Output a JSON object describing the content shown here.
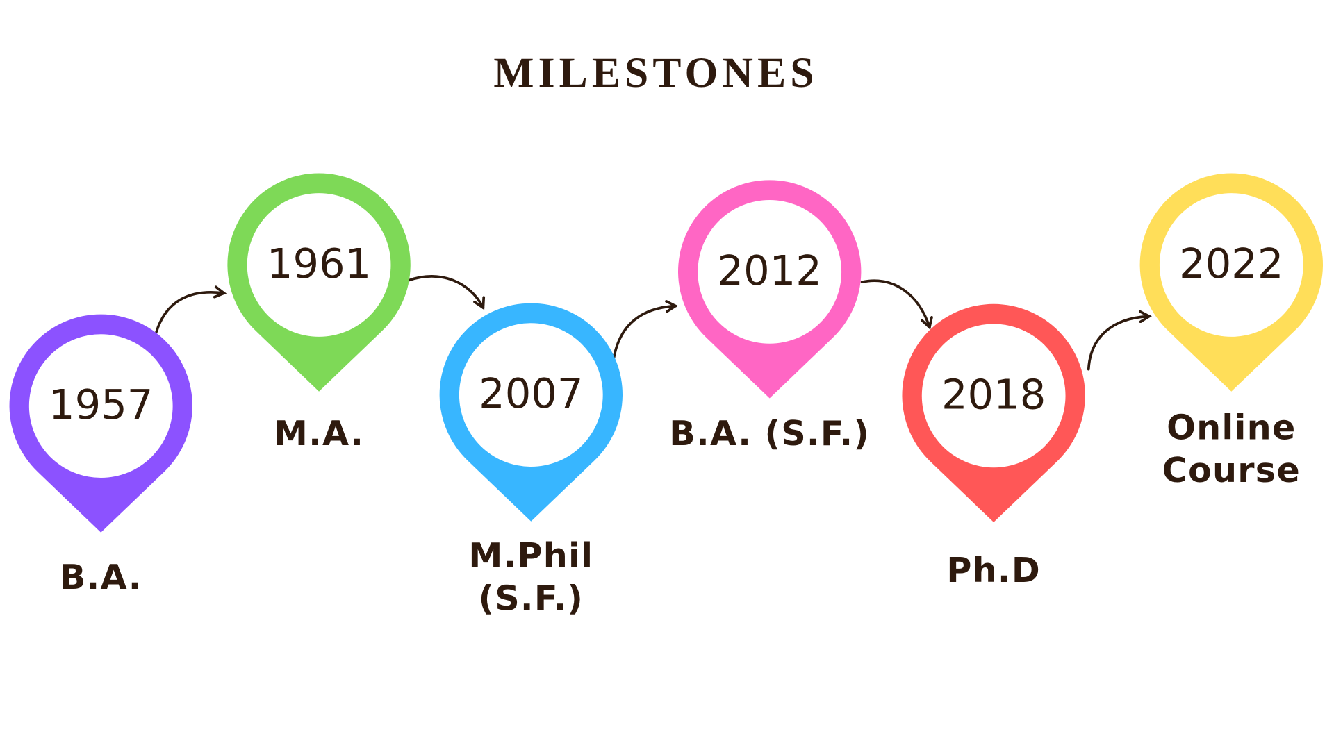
{
  "title": "MILESTONES",
  "milestones": [
    {
      "year": "1957",
      "label_lines": [
        "B.A."
      ]
    },
    {
      "year": "1961",
      "label_lines": [
        "M.A."
      ]
    },
    {
      "year": "2007",
      "label_lines": [
        "M.Phil",
        "(S.F.)"
      ]
    },
    {
      "year": "2012",
      "label_lines": [
        "B.A. (S.F.)"
      ]
    },
    {
      "year": "2018",
      "label_lines": [
        "Ph.D"
      ]
    },
    {
      "year": "2022",
      "label_lines": [
        "Online",
        "Course"
      ]
    }
  ]
}
